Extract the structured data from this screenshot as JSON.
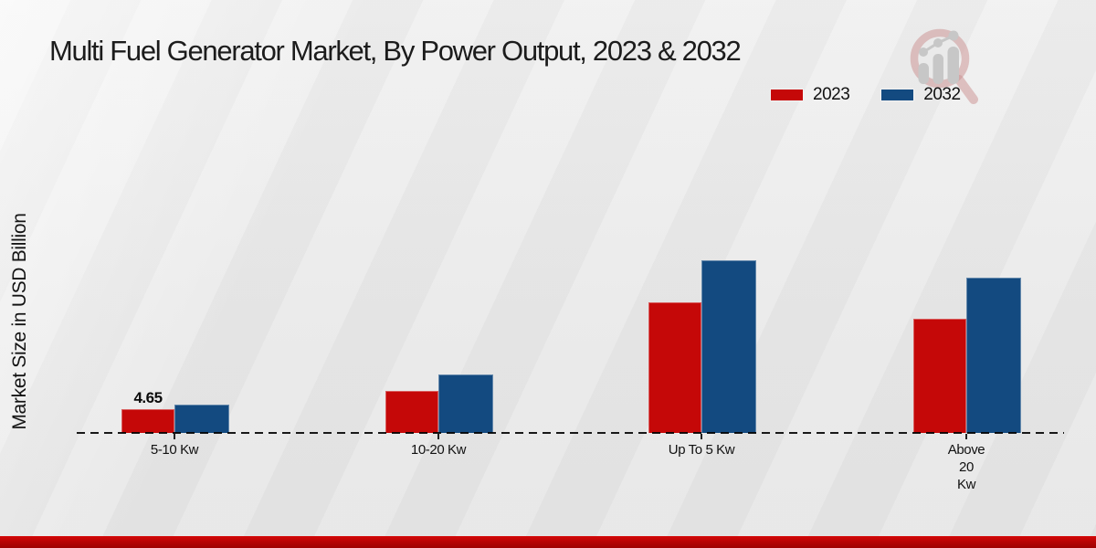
{
  "title": "Multi Fuel Generator Market, By Power Output, 2023 & 2032",
  "ylabel": "Market Size in USD Billion",
  "icons": {
    "watermark": "magnifier-bar-chart-logo"
  },
  "legend": {
    "position": "top-right"
  },
  "chart_data": {
    "type": "bar",
    "title": "Multi Fuel Generator Market, By Power Output, 2023 & 2032",
    "xlabel": "",
    "ylabel": "Market Size in USD Billion",
    "categories": [
      "5-10 Kw",
      "10-20 Kw",
      "Up To 5 Kw",
      "Above 20 Kw"
    ],
    "category_label_lines": [
      [
        "5-10 Kw"
      ],
      [
        "10-20 Kw"
      ],
      [
        "Up To 5 Kw"
      ],
      [
        "Above",
        "20",
        "Kw"
      ]
    ],
    "series": [
      {
        "name": "2023",
        "color": "#c50808",
        "values": [
          4.65,
          8.2,
          25.6,
          22.5
        ]
      },
      {
        "name": "2032",
        "color": "#134a80",
        "values": [
          5.5,
          11.4,
          34.0,
          30.6
        ]
      }
    ],
    "annotations": [
      {
        "category_index": 0,
        "series_index": 0,
        "text": "4.65"
      }
    ],
    "ylim": [
      0,
      35
    ],
    "grid": false,
    "baseline_style": "dashed",
    "legend_position": "top-right",
    "units": "USD Billion"
  }
}
